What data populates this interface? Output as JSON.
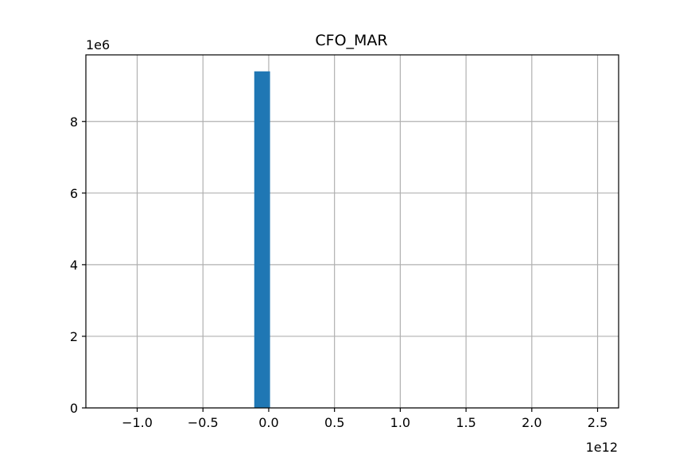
{
  "chart_data": {
    "type": "bar",
    "title": "CFO_MAR",
    "xlabel": "",
    "ylabel": "",
    "x_offset_label": "1e12",
    "y_offset_label": "1e6",
    "xlim": [
      -1.39,
      2.66
    ],
    "ylim": [
      0,
      9.86
    ],
    "grid": true,
    "bar_color": "#1f77b4",
    "x_ticks": [
      {
        "value": -1.0,
        "label": "−1.0"
      },
      {
        "value": -0.5,
        "label": "−0.5"
      },
      {
        "value": 0.0,
        "label": "0.0"
      },
      {
        "value": 0.5,
        "label": "0.5"
      },
      {
        "value": 1.0,
        "label": "1.0"
      },
      {
        "value": 1.5,
        "label": "1.5"
      },
      {
        "value": 2.0,
        "label": "2.0"
      },
      {
        "value": 2.5,
        "label": "2.5"
      }
    ],
    "y_ticks": [
      {
        "value": 0,
        "label": "0"
      },
      {
        "value": 2,
        "label": "2"
      },
      {
        "value": 4,
        "label": "4"
      },
      {
        "value": 6,
        "label": "6"
      },
      {
        "value": 8,
        "label": "8"
      }
    ],
    "bins": [
      {
        "x0": -0.11,
        "x1": 0.0,
        "value": 9.4
      },
      {
        "x0": 0.0,
        "x1": 0.01,
        "value": 9.4
      }
    ]
  }
}
